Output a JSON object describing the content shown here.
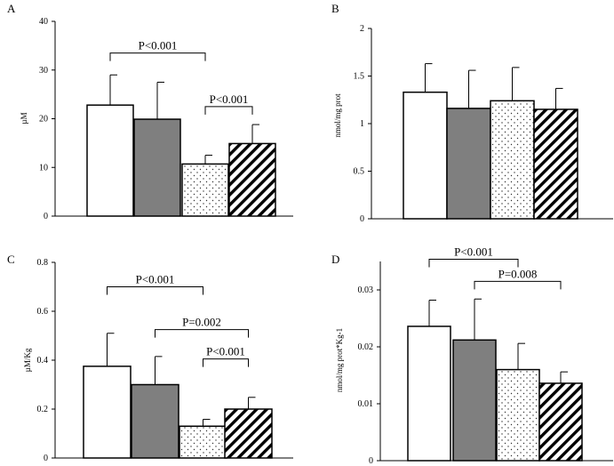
{
  "chart_data": [
    {
      "panel": "A",
      "type": "bar",
      "ylabel": "µM",
      "ylim": [
        0,
        40
      ],
      "yticks": [
        "0",
        "10",
        "20",
        "30",
        "40"
      ],
      "tickvals": [
        0,
        10,
        20,
        30,
        40
      ],
      "values": [
        22.8,
        19.9,
        10.7,
        14.9
      ],
      "errors": [
        6.2,
        7.6,
        1.8,
        3.9
      ],
      "patterns": [
        "white",
        "gray",
        "dots",
        "hatch"
      ],
      "annotations": [
        {
          "label": "P<0.001",
          "from": 0,
          "to": 2,
          "level": 33.5
        },
        {
          "label": "P<0.001",
          "from": 2,
          "to": 3,
          "level": 22.5
        }
      ]
    },
    {
      "panel": "B",
      "type": "bar",
      "ylabel": "nmol/mg prot",
      "ylim": [
        0,
        2
      ],
      "yticks": [
        "0",
        "0.5",
        "1",
        "1.5",
        "2"
      ],
      "tickvals": [
        0,
        0.5,
        1,
        1.5,
        2
      ],
      "values": [
        1.33,
        1.16,
        1.24,
        1.15
      ],
      "errors": [
        0.3,
        0.4,
        0.35,
        0.22
      ],
      "patterns": [
        "white",
        "gray",
        "dots",
        "hatch"
      ],
      "annotations": []
    },
    {
      "panel": "C",
      "type": "bar",
      "ylabel": "µM/Kg",
      "ylim": [
        0,
        0.8
      ],
      "yticks": [
        "0",
        "0.2",
        "0.4",
        "0.6",
        "0.8"
      ],
      "tickvals": [
        0,
        0.2,
        0.4,
        0.6,
        0.8
      ],
      "values": [
        0.375,
        0.3,
        0.13,
        0.2
      ],
      "errors": [
        0.135,
        0.115,
        0.028,
        0.048
      ],
      "patterns": [
        "white",
        "gray",
        "dots",
        "hatch"
      ],
      "annotations": [
        {
          "label": "P<0.001",
          "from": 0,
          "to": 2,
          "level": 0.7
        },
        {
          "label": "P=0.002",
          "from": 1,
          "to": 3,
          "level": 0.525
        },
        {
          "label": "P<0.001",
          "from": 2,
          "to": 3,
          "level": 0.405
        }
      ]
    },
    {
      "panel": "D",
      "type": "bar",
      "ylabel": "nmol/mg prot*Kg-1",
      "ylim": [
        0,
        0.035
      ],
      "yticks": [
        "0",
        "0.01",
        "0.02",
        "0.03"
      ],
      "tickvals": [
        0,
        0.01,
        0.02,
        0.03
      ],
      "values": [
        0.0236,
        0.0212,
        0.016,
        0.0136
      ],
      "errors": [
        0.0046,
        0.0072,
        0.0046,
        0.002
      ],
      "patterns": [
        "white",
        "gray",
        "dots",
        "hatch"
      ],
      "annotations": [
        {
          "label": "P<0.001",
          "from": 0,
          "to": 2,
          "level": 0.0354
        },
        {
          "label": "P=0.008",
          "from": 1,
          "to": 3,
          "level": 0.0315
        }
      ]
    }
  ]
}
